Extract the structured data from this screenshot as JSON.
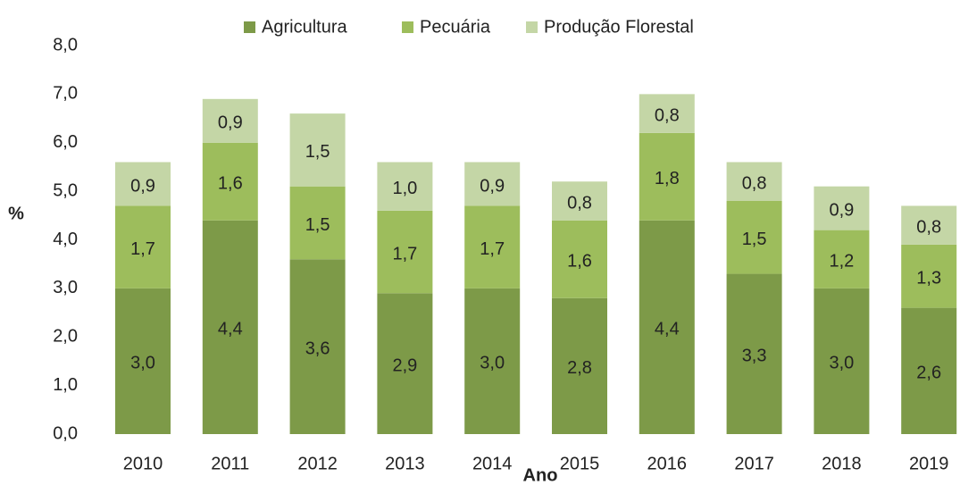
{
  "chart_data": {
    "type": "bar",
    "stacked": true,
    "x_label": "Ano",
    "y_label": "%",
    "categories": [
      "2010",
      "2011",
      "2012",
      "2013",
      "2014",
      "2015",
      "2016",
      "2017",
      "2018",
      "2019"
    ],
    "series": [
      {
        "name": "Agricultura",
        "color": "#7d9a48",
        "values": [
          3.0,
          4.4,
          3.6,
          2.9,
          3.0,
          2.8,
          4.4,
          3.3,
          3.0,
          2.6
        ],
        "value_labels": [
          "3,0",
          "4,4",
          "3,6",
          "2,9",
          "3,0",
          "2,8",
          "4,4",
          "3,3",
          "3,0",
          "2,6"
        ]
      },
      {
        "name": "Pecuária",
        "color": "#9dbd5c",
        "values": [
          1.7,
          1.6,
          1.5,
          1.7,
          1.7,
          1.6,
          1.8,
          1.5,
          1.2,
          1.3
        ],
        "value_labels": [
          "1,7",
          "1,6",
          "1,5",
          "1,7",
          "1,7",
          "1,6",
          "1,8",
          "1,5",
          "1,2",
          "1,3"
        ]
      },
      {
        "name": "Produção Florestal",
        "color": "#c4d6a6",
        "values": [
          0.9,
          0.9,
          1.5,
          1.0,
          0.9,
          0.8,
          0.8,
          0.8,
          0.9,
          0.8
        ],
        "value_labels": [
          "0,9",
          "0,9",
          "1,5",
          "1,0",
          "0,9",
          "0,8",
          "0,8",
          "0,8",
          "0,9",
          "0,8"
        ]
      }
    ],
    "ylim": [
      0,
      8
    ],
    "yticks": [
      {
        "value": 0,
        "label": "0,0"
      },
      {
        "value": 1,
        "label": "1,0"
      },
      {
        "value": 2,
        "label": "2,0"
      },
      {
        "value": 3,
        "label": "3,0"
      },
      {
        "value": 4,
        "label": "4,0"
      },
      {
        "value": 5,
        "label": "5,0"
      },
      {
        "value": 6,
        "label": "6,0"
      },
      {
        "value": 7,
        "label": "7,0"
      },
      {
        "value": 8,
        "label": "8,0"
      }
    ],
    "legend": "top"
  }
}
